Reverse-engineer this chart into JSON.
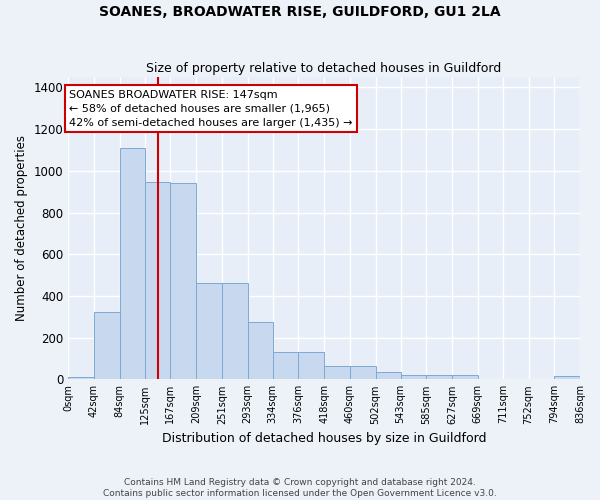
{
  "title": "SOANES, BROADWATER RISE, GUILDFORD, GU1 2LA",
  "subtitle": "Size of property relative to detached houses in Guildford",
  "xlabel": "Distribution of detached houses by size in Guildford",
  "ylabel": "Number of detached properties",
  "footnote1": "Contains HM Land Registry data © Crown copyright and database right 2024.",
  "footnote2": "Contains public sector information licensed under the Open Government Licence v3.0.",
  "bin_labels": [
    "0sqm",
    "42sqm",
    "84sqm",
    "125sqm",
    "167sqm",
    "209sqm",
    "251sqm",
    "293sqm",
    "334sqm",
    "376sqm",
    "418sqm",
    "460sqm",
    "502sqm",
    "543sqm",
    "585sqm",
    "627sqm",
    "669sqm",
    "711sqm",
    "752sqm",
    "794sqm",
    "836sqm"
  ],
  "bar_values": [
    10,
    325,
    1110,
    945,
    940,
    460,
    460,
    275,
    130,
    130,
    65,
    65,
    35,
    22,
    22,
    22,
    0,
    0,
    0,
    15,
    0
  ],
  "bar_color": "#c8d8ee",
  "bar_edgecolor": "#7baad4",
  "vline_x": 147,
  "vline_color": "#cc0000",
  "annotation_title": "SOANES BROADWATER RISE: 147sqm",
  "annotation_line2": "← 58% of detached houses are smaller (1,965)",
  "annotation_line3": "42% of semi-detached houses are larger (1,435) →",
  "annotation_box_color": "#ffffff",
  "annotation_box_edgecolor": "#cc0000",
  "ylim": [
    0,
    1450
  ],
  "background_color": "#e8eef8",
  "fig_background_color": "#edf1f8",
  "grid_color": "#ffffff",
  "yticks": [
    0,
    200,
    400,
    600,
    800,
    1000,
    1200,
    1400
  ],
  "bin_edges": [
    0,
    42,
    84,
    125,
    167,
    209,
    251,
    293,
    334,
    376,
    418,
    460,
    502,
    543,
    585,
    627,
    669,
    711,
    752,
    794,
    836
  ]
}
